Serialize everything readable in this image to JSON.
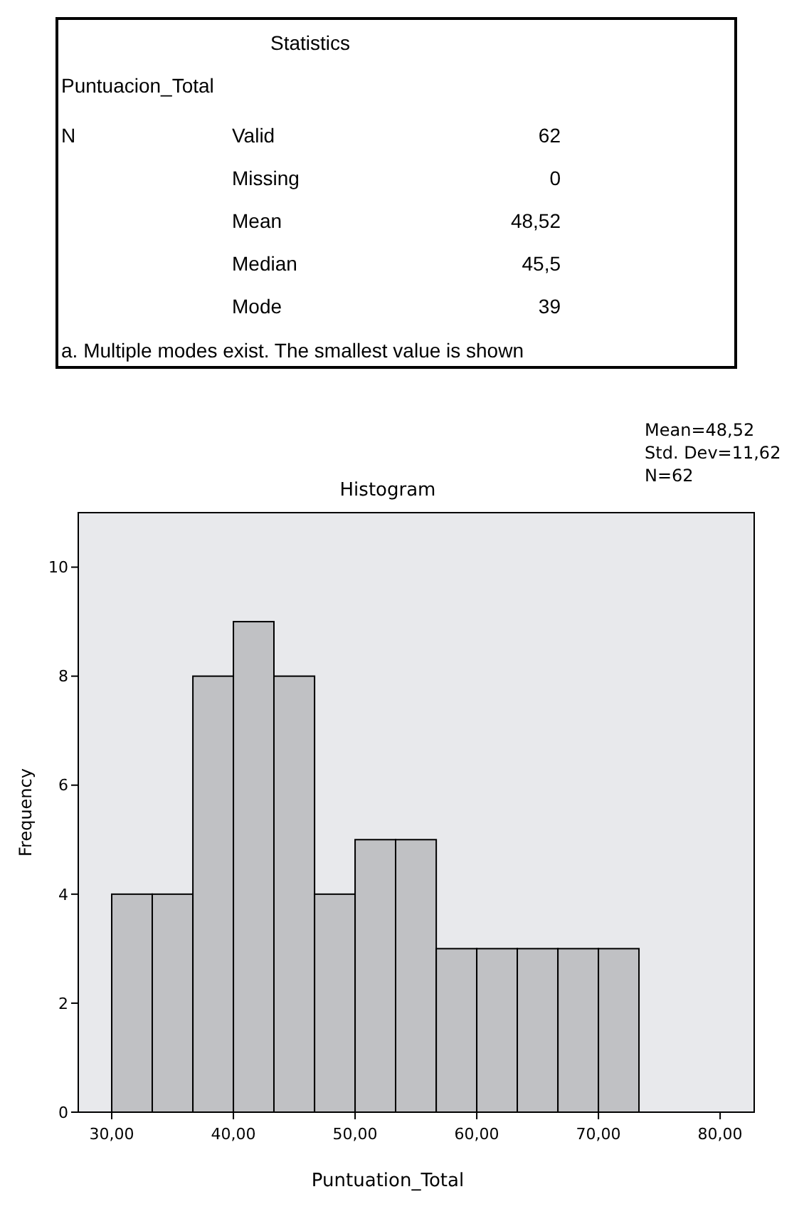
{
  "chart_data": [
    {
      "type": "other",
      "title": "Statistics",
      "subtitle": "Puntuacion_Total",
      "annotations": [
        "N",
        "Valid",
        "62",
        "Missing",
        "0",
        "Mean",
        "48,52",
        "Median",
        "45,5",
        "Mode",
        "39",
        "a. Multiple modes exist. The smallest value is shown"
      ]
    },
    {
      "type": "histogram",
      "title": "Histogram",
      "xlabel": "Puntuation_Total",
      "ylabel": "Frequency",
      "annotations": [
        "Mean=48,52",
        "Std. Dev=11,62",
        "N=62"
      ],
      "bins": [
        30,
        33.33,
        36.67,
        40,
        43.33,
        46.67,
        50,
        53.33,
        56.67,
        60,
        63.33,
        66.67,
        70,
        73.33
      ],
      "values": [
        4,
        4,
        8,
        9,
        8,
        4,
        5,
        5,
        3,
        3,
        3,
        3,
        3
      ],
      "color": "#c0c1c4",
      "xlim": [
        27.25,
        82.8
      ],
      "xticks": [
        {
          "value": 30,
          "label": "30,00"
        },
        {
          "value": 40,
          "label": "40,00"
        },
        {
          "value": 50,
          "label": "50,00"
        },
        {
          "value": 60,
          "label": "60,00"
        },
        {
          "value": 70,
          "label": "70,00"
        },
        {
          "value": 80,
          "label": "80,00"
        }
      ],
      "ylim": [
        0,
        11
      ],
      "yticks": [
        0,
        2,
        4,
        6,
        8,
        10
      ],
      "grid": false
    }
  ]
}
